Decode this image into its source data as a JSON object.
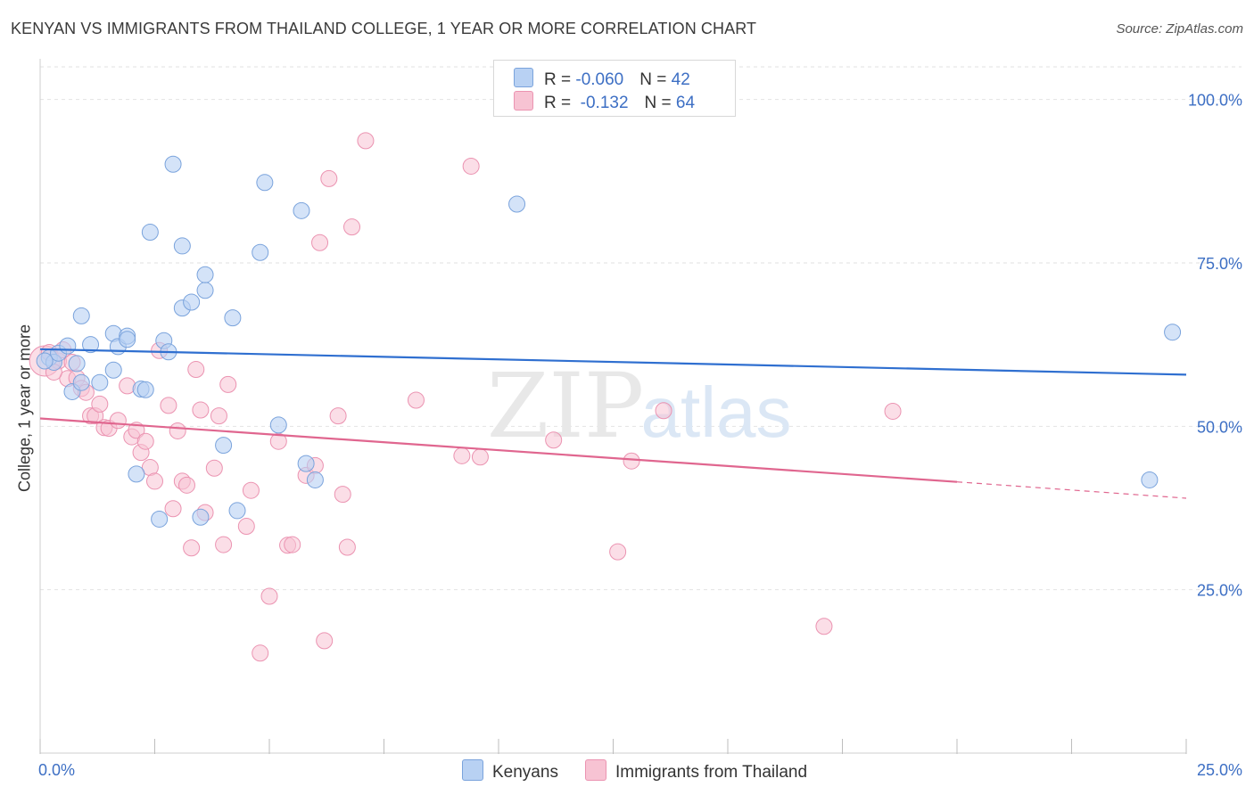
{
  "title": "KENYAN VS IMMIGRANTS FROM THAILAND COLLEGE, 1 YEAR OR MORE CORRELATION CHART",
  "source": "Source: ZipAtlas.com",
  "watermark": {
    "zip": "ZIP",
    "atlas": "atlas"
  },
  "colors": {
    "blue_fill": "#b8d1f3",
    "blue_stroke": "#7aa3dc",
    "blue_line": "#2f6fd0",
    "pink_fill": "#f7c3d3",
    "pink_stroke": "#eb93b1",
    "pink_line": "#e0668f",
    "tick_label": "#3d6fc4"
  },
  "legend": {
    "rows": [
      {
        "r_label": "R = ",
        "r_value": "-0.060",
        "n_label": "N = ",
        "n_value": "42"
      },
      {
        "r_label": "R = ",
        "r_value": " -0.132",
        "n_label": "N = ",
        "n_value": "64"
      }
    ]
  },
  "bottom_legend": [
    "Kenyans",
    "Immigrants from Thailand"
  ],
  "chart_data": {
    "type": "scatter",
    "title": "KENYAN VS IMMIGRANTS FROM THAILAND COLLEGE, 1 YEAR OR MORE CORRELATION CHART",
    "xlabel": "",
    "ylabel": "College, 1 year or more",
    "xlim": [
      0,
      25
    ],
    "ylim": [
      0,
      105
    ],
    "x_tick_labels": [
      "0.0%",
      "25.0%"
    ],
    "y_ticks": [
      25,
      50,
      75,
      100
    ],
    "y_tick_labels": [
      "25.0%",
      "50.0%",
      "75.0%",
      "100.0%"
    ],
    "grid": true,
    "series": [
      {
        "name": "Kenyans",
        "r": -0.06,
        "n": 42,
        "trend": {
          "x0": 0,
          "y0": 61.8,
          "x1": 25,
          "y1": 57.9
        },
        "points": [
          [
            0.2,
            60.5
          ],
          [
            0.3,
            59.8
          ],
          [
            0.4,
            61.2
          ],
          [
            0.6,
            62.3
          ],
          [
            0.7,
            55.3
          ],
          [
            0.8,
            59.6
          ],
          [
            0.9,
            56.7
          ],
          [
            0.9,
            66.9
          ],
          [
            1.1,
            62.5
          ],
          [
            1.3,
            56.7
          ],
          [
            1.6,
            64.2
          ],
          [
            1.6,
            58.6
          ],
          [
            1.7,
            62.2
          ],
          [
            1.9,
            63.8
          ],
          [
            1.9,
            63.3
          ],
          [
            2.1,
            42.7
          ],
          [
            2.2,
            55.7
          ],
          [
            2.3,
            55.6
          ],
          [
            2.4,
            79.7
          ],
          [
            2.6,
            35.8
          ],
          [
            2.7,
            63.1
          ],
          [
            2.8,
            61.4
          ],
          [
            2.9,
            90.1
          ],
          [
            3.1,
            68.1
          ],
          [
            3.1,
            77.6
          ],
          [
            3.3,
            69.0
          ],
          [
            3.5,
            36.1
          ],
          [
            3.6,
            70.8
          ],
          [
            3.6,
            73.2
          ],
          [
            4.0,
            47.1
          ],
          [
            4.2,
            66.6
          ],
          [
            4.3,
            37.1
          ],
          [
            4.8,
            76.6
          ],
          [
            4.9,
            87.3
          ],
          [
            5.2,
            50.2
          ],
          [
            5.7,
            83.0
          ],
          [
            5.8,
            44.3
          ],
          [
            6.0,
            41.8
          ],
          [
            10.4,
            84.0
          ],
          [
            24.2,
            41.8
          ],
          [
            24.7,
            64.4
          ],
          [
            0.1,
            60.0
          ]
        ]
      },
      {
        "name": "Immigrants from Thailand",
        "r": -0.132,
        "n": 64,
        "trend": {
          "x0": 0,
          "y0": 51.2,
          "x1": 20,
          "y1": 41.5,
          "dash_x1": 25,
          "dash_y1": 39.0
        },
        "points": [
          [
            0.1,
            60.0
          ],
          [
            0.2,
            61.3
          ],
          [
            0.4,
            60.0
          ],
          [
            0.5,
            61.7
          ],
          [
            0.6,
            57.3
          ],
          [
            0.7,
            59.8
          ],
          [
            0.8,
            57.4
          ],
          [
            0.9,
            55.8
          ],
          [
            1.0,
            55.2
          ],
          [
            1.1,
            51.6
          ],
          [
            1.2,
            51.6
          ],
          [
            1.3,
            53.4
          ],
          [
            1.4,
            49.8
          ],
          [
            1.5,
            49.7
          ],
          [
            1.7,
            50.9
          ],
          [
            1.9,
            56.2
          ],
          [
            2.0,
            48.4
          ],
          [
            2.1,
            49.4
          ],
          [
            2.2,
            46.0
          ],
          [
            2.3,
            47.7
          ],
          [
            2.4,
            43.7
          ],
          [
            2.5,
            41.6
          ],
          [
            2.6,
            61.6
          ],
          [
            2.8,
            53.2
          ],
          [
            2.9,
            37.4
          ],
          [
            3.0,
            49.3
          ],
          [
            3.1,
            41.6
          ],
          [
            3.2,
            41.0
          ],
          [
            3.3,
            31.4
          ],
          [
            3.4,
            58.7
          ],
          [
            3.5,
            52.5
          ],
          [
            3.6,
            36.8
          ],
          [
            3.8,
            43.6
          ],
          [
            3.9,
            51.6
          ],
          [
            4.0,
            31.9
          ],
          [
            4.1,
            56.4
          ],
          [
            4.5,
            34.7
          ],
          [
            4.6,
            40.2
          ],
          [
            4.8,
            15.3
          ],
          [
            5.0,
            24.0
          ],
          [
            5.2,
            47.7
          ],
          [
            5.4,
            31.8
          ],
          [
            5.5,
            31.9
          ],
          [
            5.8,
            42.5
          ],
          [
            6.0,
            44.0
          ],
          [
            6.1,
            78.1
          ],
          [
            6.2,
            17.2
          ],
          [
            6.3,
            87.9
          ],
          [
            6.5,
            51.6
          ],
          [
            6.6,
            39.6
          ],
          [
            6.7,
            31.5
          ],
          [
            6.8,
            80.5
          ],
          [
            7.1,
            93.7
          ],
          [
            8.2,
            54.0
          ],
          [
            9.2,
            45.5
          ],
          [
            9.4,
            89.8
          ],
          [
            9.6,
            45.3
          ],
          [
            11.2,
            47.9
          ],
          [
            12.6,
            30.8
          ],
          [
            12.9,
            44.7
          ],
          [
            13.6,
            52.4
          ],
          [
            17.1,
            19.4
          ],
          [
            18.6,
            52.3
          ],
          [
            0.3,
            58.3
          ]
        ]
      }
    ]
  }
}
